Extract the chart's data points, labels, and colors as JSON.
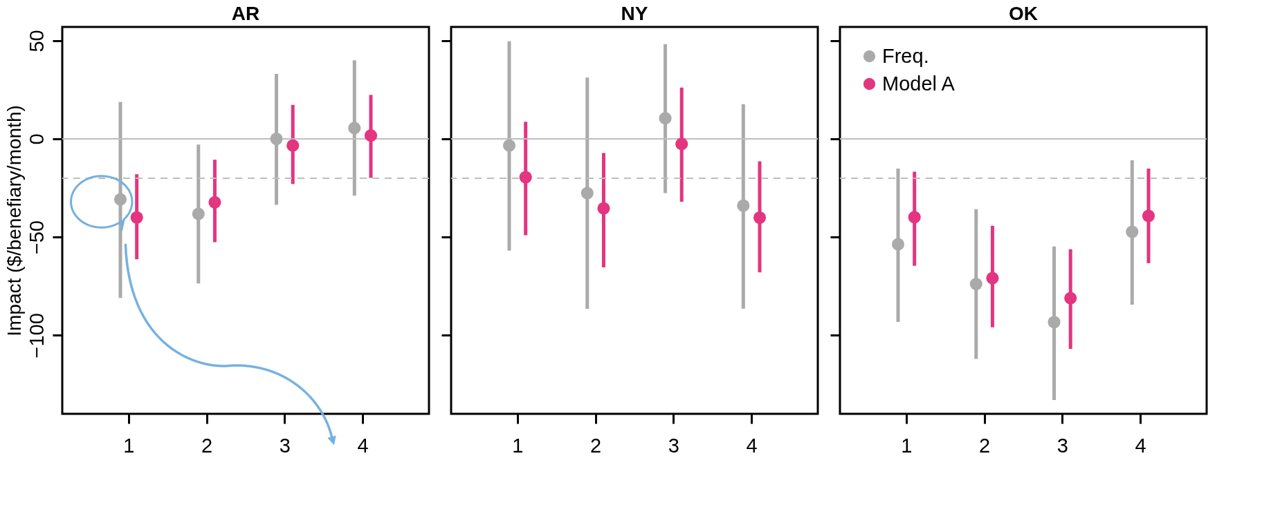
{
  "chart_data": [
    {
      "type": "scatter",
      "title": "AR",
      "ylabel": "Impact ($/benefiary/month)",
      "categories": [
        "1",
        "2",
        "3",
        "4"
      ],
      "ylim": [
        -140,
        57
      ],
      "yticks": [
        -100,
        -50,
        0,
        50
      ],
      "marker": "circle",
      "grid": false,
      "legend": false,
      "ref_lines": [
        {
          "axis": "y",
          "value": 0,
          "color": "#bebebe",
          "line_style": "solid"
        },
        {
          "axis": "y",
          "value": -20,
          "color": "#bebebe",
          "line_style": "dashed"
        }
      ],
      "series": [
        {
          "color": "#aaaaaa",
          "values": [
            -30.8,
            -38.2,
            0,
            5.5
          ],
          "errors": [
            [
              -81,
              18.8
            ],
            [
              -73.6,
              -2.9
            ],
            [
              -33.6,
              33.1
            ],
            [
              -28.9,
              40
            ]
          ]
        },
        {
          "color": "#e33580",
          "values": [
            -40,
            -32.3,
            -3.4,
            1.7
          ],
          "errors": [
            [
              -61.3,
              -18
            ],
            [
              -52.6,
              -10.6
            ],
            [
              -23,
              17.3
            ],
            [
              -19.8,
              22.4
            ]
          ]
        }
      ]
    },
    {
      "type": "scatter",
      "title": "NY",
      "categories": [
        "1",
        "2",
        "3",
        "4"
      ],
      "ylim": [
        -140,
        57
      ],
      "yticks": [
        -100,
        -50,
        0,
        50
      ],
      "tick_labels": "x",
      "marker": "circle",
      "grid": false,
      "legend": false,
      "ref_lines": [
        {
          "axis": "y",
          "value": 0,
          "color": "#bebebe",
          "line_style": "solid"
        },
        {
          "axis": "y",
          "value": -20,
          "color": "#bebebe",
          "line_style": "dashed"
        }
      ],
      "series": [
        {
          "color": "#aaaaaa",
          "values": [
            -3.4,
            -27.6,
            10.5,
            -34
          ],
          "errors": [
            [
              -56.9,
              49.7
            ],
            [
              -86.5,
              31.2
            ],
            [
              -27.6,
              48.2
            ],
            [
              -86.4,
              17.7
            ]
          ]
        },
        {
          "color": "#e33580",
          "values": [
            -19.5,
            -35.4,
            -2.6,
            -40.1
          ],
          "errors": [
            [
              -49.1,
              8.7
            ],
            [
              -65.4,
              -7.2
            ],
            [
              -32,
              26.1
            ],
            [
              -68,
              -11.4
            ]
          ]
        }
      ]
    },
    {
      "type": "scatter",
      "title": "OK",
      "categories": [
        "1",
        "2",
        "3",
        "4"
      ],
      "ylim": [
        -140,
        57
      ],
      "yticks": [
        -100,
        -50,
        0,
        50
      ],
      "tick_labels": "x",
      "marker": "circle",
      "grid": false,
      "legend": "top left",
      "ref_lines": [
        {
          "axis": "y",
          "value": 0,
          "color": "#bebebe",
          "line_style": "solid"
        },
        {
          "axis": "y",
          "value": -20,
          "color": "#bebebe",
          "line_style": "dashed"
        }
      ],
      "series": [
        {
          "name": "Freq.",
          "color": "#aaaaaa",
          "values": [
            -53.7,
            -73.9,
            -93.3,
            -47.3
          ],
          "errors": [
            [
              -93.2,
              -15.1
            ],
            [
              -112,
              -35.8
            ],
            [
              -133,
              -54.8
            ],
            [
              -84.4,
              -10.9
            ]
          ]
        },
        {
          "name": "Model A",
          "color": "#e33580",
          "values": [
            -39.9,
            -70.9,
            -81.1,
            -39.2
          ],
          "errors": [
            [
              -64.6,
              -16.7
            ],
            [
              -95.9,
              -44.2
            ],
            [
              -106.9,
              -56.2
            ],
            [
              -63.3,
              -15.1
            ]
          ]
        }
      ]
    }
  ]
}
